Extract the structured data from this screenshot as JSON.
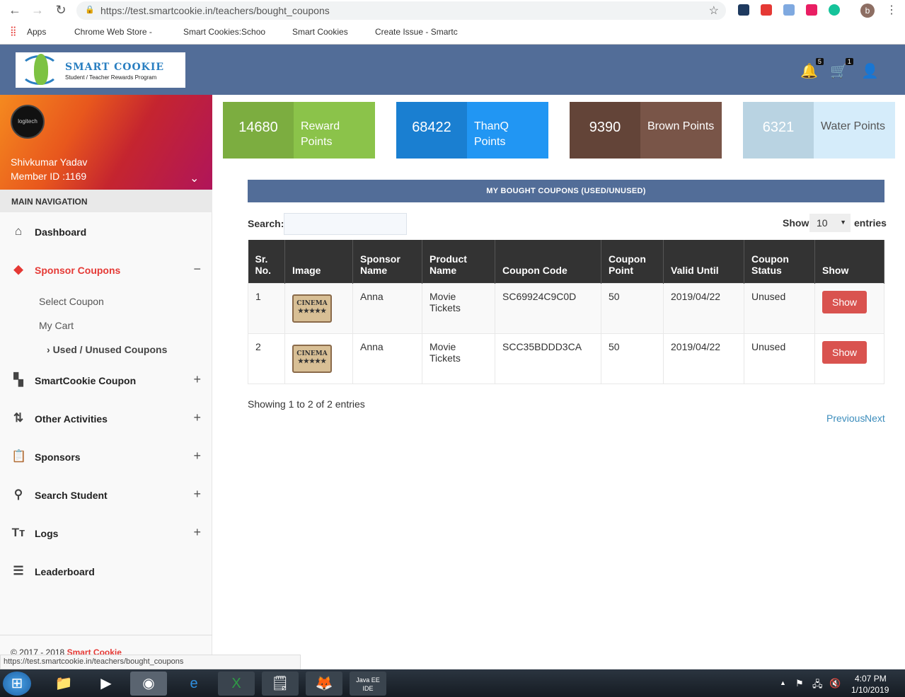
{
  "browser": {
    "url": "https://test.smartcookie.in/teachers/bought_coupons",
    "bookmarks": [
      "Apps",
      "Chrome Web Store -",
      "Smart Cookies:Schoo",
      "Smart Cookies",
      "Create Issue - Smartc"
    ],
    "profile_initial": "b",
    "status_url": "https://test.smartcookie.in/teachers/bought_coupons"
  },
  "header": {
    "logo_title": "SMART COOKIE",
    "logo_subtitle": "Student / Teacher Rewards Program",
    "notifications": "5",
    "cart": "1"
  },
  "profile": {
    "name": "Shivkumar Yadav",
    "member_id": "Member ID :1169",
    "avatar_text": "logitech"
  },
  "sidebar": {
    "heading": "MAIN NAVIGATION",
    "items": [
      {
        "label": "Dashboard",
        "icon": "home-icon"
      },
      {
        "label": "Sponsor Coupons",
        "icon": "layers-icon",
        "toggle": "−"
      },
      {
        "label": "SmartCookie Coupon",
        "icon": "widgets-icon",
        "toggle": "+"
      },
      {
        "label": "Other Activities",
        "icon": "activity-icon",
        "toggle": "+"
      },
      {
        "label": "Sponsors",
        "icon": "clipboard-icon",
        "toggle": "+"
      },
      {
        "label": "Search Student",
        "icon": "search-icon",
        "toggle": "+"
      },
      {
        "label": "Logs",
        "icon": "text-icon",
        "toggle": "+"
      },
      {
        "label": "Leaderboard",
        "icon": "list-icon"
      }
    ],
    "subitems": [
      "Select Coupon",
      "My Cart",
      "Used / Unused Coupons"
    ],
    "footer_prefix": "© 2017 - 2018 ",
    "footer_brand": "Smart Cookie"
  },
  "cards": [
    {
      "value": "14680",
      "label": "Reward Points",
      "color": "#8bc34a",
      "dark": "#7cad40"
    },
    {
      "value": "68422",
      "label": "ThanQ Points",
      "color": "#2196f3",
      "dark": "#1a7fd1"
    },
    {
      "value": "9390",
      "label": "Brown Points",
      "color": "#795548",
      "dark": "#634438"
    },
    {
      "value": "6321",
      "label": "Water Points",
      "color": "#d5ecfa",
      "dark": "#b9d3e2"
    }
  ],
  "main": {
    "title": "MY BOUGHT COUPONS (USED/UNUSED)",
    "search_label": "Search:",
    "search_value": "",
    "show_label": "Show",
    "entries_value": "10",
    "entries_label": "entries",
    "columns": [
      "Sr. No.",
      "Image",
      "Sponsor Name",
      "Product Name",
      "Coupon Code",
      "Coupon Point",
      "Valid Until",
      "Coupon Status",
      "Show"
    ],
    "rows": [
      {
        "sr": "1",
        "image": "CINEMA",
        "sponsor": "Anna",
        "product": "Movie Tickets",
        "code": "SC69924C9C0D",
        "point": "50",
        "valid": "2019/04/22",
        "status": "Unused",
        "button": "Show"
      },
      {
        "sr": "2",
        "image": "CINEMA",
        "sponsor": "Anna",
        "product": "Movie Tickets",
        "code": "SCC35BDDD3CA",
        "point": "50",
        "valid": "2019/04/22",
        "status": "Unused",
        "button": "Show"
      }
    ],
    "info": "Showing 1 to 2 of 2 entries",
    "prev": "Previous",
    "next": "Next"
  },
  "taskbar": {
    "time": "4:07 PM",
    "date": "1/10/2019"
  }
}
